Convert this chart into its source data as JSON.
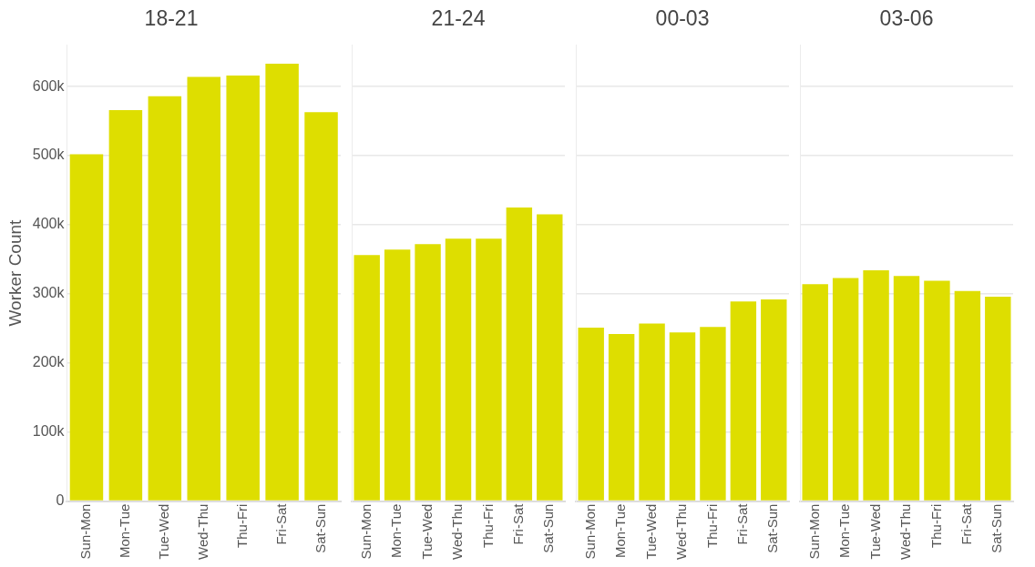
{
  "chart_data": [
    {
      "type": "bar",
      "title": "18-21",
      "ylabel": "Worker Count",
      "categories": [
        "Sun-Mon",
        "Mon-Tue",
        "Tue-Wed",
        "Wed-Thu",
        "Thu-Fri",
        "Fri-Sat",
        "Sat-Sun"
      ],
      "values": [
        502000,
        566000,
        586000,
        614000,
        616000,
        633000,
        563000
      ],
      "color": "#dede00",
      "ylim": [
        0,
        660000
      ],
      "yticks": [
        0,
        {
          "value": 100000,
          "label": "100k"
        },
        {
          "value": 200000,
          "label": "200k"
        },
        {
          "value": 300000,
          "label": "300k"
        },
        {
          "value": 400000,
          "label": "400k"
        },
        {
          "value": 500000,
          "label": "500k"
        },
        {
          "value": 600000,
          "label": "600k"
        }
      ],
      "grid": "y"
    },
    {
      "type": "bar",
      "title": "21-24",
      "categories": [
        "Sun-Mon",
        "Mon-Tue",
        "Tue-Wed",
        "Wed-Thu",
        "Thu-Fri",
        "Fri-Sat",
        "Sat-Sun"
      ],
      "values": [
        356000,
        364000,
        372000,
        380000,
        380000,
        425000,
        415000
      ],
      "color": "#dede00",
      "ylim": [
        0,
        660000
      ],
      "yticks": [
        {
          "value": 0,
          "label": null
        },
        {
          "value": 100000,
          "label": null
        },
        {
          "value": 200000,
          "label": null
        },
        {
          "value": 300000,
          "label": null
        },
        {
          "value": 400000,
          "label": null
        },
        {
          "value": 500000,
          "label": null
        },
        {
          "value": 600000,
          "label": null
        }
      ],
      "grid": "y",
      "tick_labels": "x"
    },
    {
      "type": "bar",
      "title": "00-03",
      "categories": [
        "Sun-Mon",
        "Mon-Tue",
        "Tue-Wed",
        "Wed-Thu",
        "Thu-Fri",
        "Fri-Sat",
        "Sat-Sun"
      ],
      "values": [
        251000,
        242000,
        257000,
        244000,
        252000,
        289000,
        292000
      ],
      "color": "#dede00",
      "ylim": [
        0,
        660000
      ],
      "yticks": [
        {
          "value": 0,
          "label": null
        },
        {
          "value": 100000,
          "label": null
        },
        {
          "value": 200000,
          "label": null
        },
        {
          "value": 300000,
          "label": null
        },
        {
          "value": 400000,
          "label": null
        },
        {
          "value": 500000,
          "label": null
        },
        {
          "value": 600000,
          "label": null
        }
      ],
      "grid": "y",
      "tick_labels": "x"
    },
    {
      "type": "bar",
      "title": "03-06",
      "categories": [
        "Sun-Mon",
        "Mon-Tue",
        "Tue-Wed",
        "Wed-Thu",
        "Thu-Fri",
        "Fri-Sat",
        "Sat-Sun"
      ],
      "values": [
        314000,
        323000,
        334000,
        326000,
        319000,
        304000,
        296000
      ],
      "color": "#dede00",
      "ylim": [
        0,
        660000
      ],
      "yticks": [
        {
          "value": 0,
          "label": null
        },
        {
          "value": 100000,
          "label": null
        },
        {
          "value": 200000,
          "label": null
        },
        {
          "value": 300000,
          "label": null
        },
        {
          "value": 400000,
          "label": null
        },
        {
          "value": 500000,
          "label": null
        },
        {
          "value": 600000,
          "label": null
        }
      ],
      "grid": "y",
      "tick_labels": "x"
    }
  ]
}
